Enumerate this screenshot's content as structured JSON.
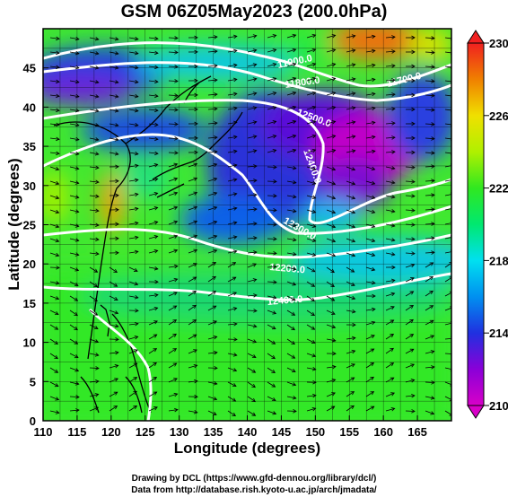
{
  "title": "GSM 06Z05May2023 (200.0hPa)",
  "xlabel": "Longitude (degrees)",
  "ylabel": "Latitude  (degrees)",
  "credits": [
    "Drawing by DCL (https://www.gfd-dennou.org/library/dcl/)",
    "Data from http://database.rish.kyoto-u.ac.jp/arch/jmadata/"
  ],
  "map": {
    "lon_range": [
      110,
      170
    ],
    "lat_range": [
      0,
      50
    ],
    "lon_ticks": [
      110,
      115,
      120,
      125,
      130,
      135,
      140,
      145,
      150,
      155,
      160,
      165
    ],
    "lat_ticks": [
      0,
      5,
      10,
      15,
      20,
      25,
      30,
      35,
      40,
      45
    ],
    "grid": true
  },
  "colorbar": {
    "min": 210,
    "max": 230,
    "ticks": [
      210,
      214,
      218,
      222,
      226,
      230
    ],
    "colors": [
      "#d800c8",
      "#8a00d8",
      "#2030e0",
      "#0090f0",
      "#00e0f0",
      "#00e870",
      "#30e820",
      "#b0f000",
      "#f0e000",
      "#f08000",
      "#f02020"
    ]
  },
  "contours": [
    {
      "label": "11900.0"
    },
    {
      "label": "11800.0"
    },
    {
      "label": "11700.0"
    },
    {
      "label": "12500.0"
    },
    {
      "label": "12400.0"
    },
    {
      "label": "12300.0"
    },
    {
      "label": "12200.0"
    },
    {
      "label": "12400.0"
    }
  ],
  "colors": {
    "land": "#000000",
    "contour": "#ffffff"
  }
}
